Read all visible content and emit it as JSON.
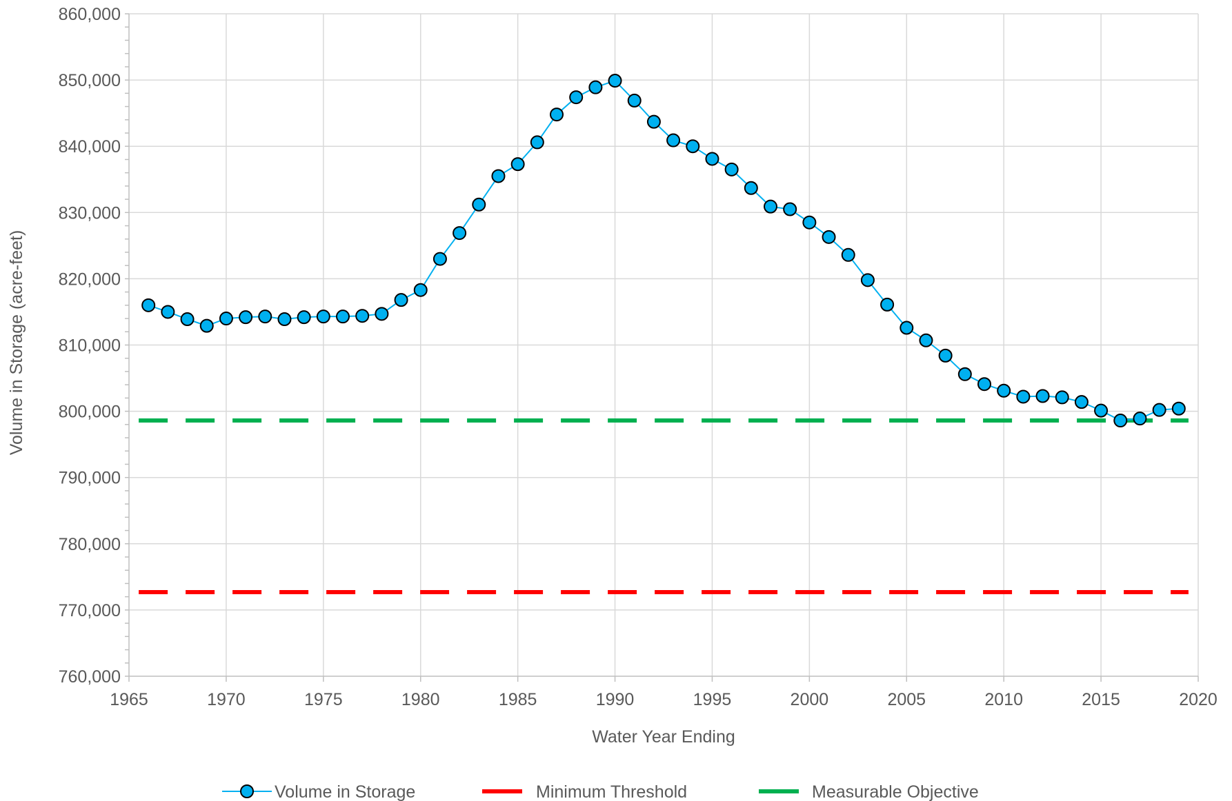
{
  "chart_data": {
    "type": "line",
    "title": "",
    "xlabel": "Water Year Ending",
    "ylabel": "Volume in Storage (acre-feet)",
    "xlim": [
      1965,
      2020
    ],
    "ylim": [
      760000,
      860000
    ],
    "x_ticks": [
      1965,
      1970,
      1975,
      1980,
      1985,
      1990,
      1995,
      2000,
      2005,
      2010,
      2015,
      2020
    ],
    "x_tick_labels": [
      "1965",
      "1970",
      "1975",
      "1980",
      "1985",
      "1990",
      "1995",
      "2000",
      "2005",
      "2010",
      "2015",
      "2020"
    ],
    "y_ticks": [
      760000,
      770000,
      780000,
      790000,
      800000,
      810000,
      820000,
      830000,
      840000,
      850000,
      860000
    ],
    "y_tick_labels": [
      "760,000",
      "770,000",
      "780,000",
      "790,000",
      "800,000",
      "810,000",
      "820,000",
      "830,000",
      "840,000",
      "850,000",
      "860,000"
    ],
    "grid": true,
    "legend_position": "bottom",
    "series": [
      {
        "name": "Volume in Storage",
        "color": "#00b0f0",
        "marker": "circle",
        "x": [
          1966,
          1967,
          1968,
          1969,
          1970,
          1971,
          1972,
          1973,
          1974,
          1975,
          1976,
          1977,
          1978,
          1979,
          1980,
          1981,
          1982,
          1983,
          1984,
          1985,
          1986,
          1987,
          1988,
          1989,
          1990,
          1991,
          1992,
          1993,
          1994,
          1995,
          1996,
          1997,
          1998,
          1999,
          2000,
          2001,
          2002,
          2003,
          2004,
          2005,
          2006,
          2007,
          2008,
          2009,
          2010,
          2011,
          2012,
          2013,
          2014,
          2015,
          2016,
          2017,
          2018,
          2019
        ],
        "values": [
          816000,
          815000,
          813900,
          812900,
          814000,
          814200,
          814300,
          813900,
          814200,
          814300,
          814300,
          814400,
          814700,
          816800,
          818300,
          823000,
          826900,
          831200,
          835500,
          837300,
          840600,
          844800,
          847400,
          848900,
          849900,
          846900,
          843700,
          840900,
          840000,
          838100,
          836500,
          833700,
          830900,
          830500,
          828500,
          826300,
          823600,
          819800,
          816100,
          812600,
          810700,
          808400,
          805600,
          804100,
          803100,
          802200,
          802300,
          802100,
          801400,
          800100,
          798600,
          798900,
          800200,
          800400
        ]
      },
      {
        "name": "Minimum Threshold",
        "color": "#ff0000",
        "style": "dashed",
        "x": [
          1965.5,
          2019.5
        ],
        "values": [
          772700,
          772700
        ]
      },
      {
        "name": "Measurable Objective",
        "color": "#00b050",
        "style": "dashed",
        "x": [
          1965.5,
          2019.5
        ],
        "values": [
          798600,
          798600
        ]
      }
    ]
  }
}
